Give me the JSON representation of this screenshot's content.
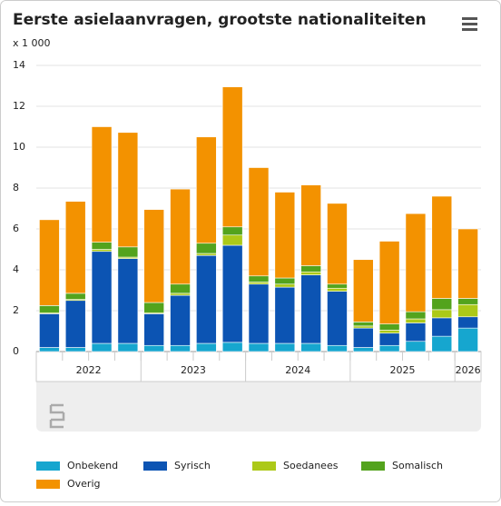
{
  "chart_data": {
    "type": "stacked-bar",
    "title": "Eerste asielaanvragen, grootste nationaliteiten",
    "y_unit_label": "x 1 000",
    "categories": [
      null,
      null,
      null,
      null,
      null,
      null,
      null,
      null,
      null,
      null,
      null,
      null,
      null,
      null,
      null,
      null,
      null
    ],
    "x_groups": [
      {
        "label": "2022",
        "size": 4
      },
      {
        "label": "2023",
        "size": 4
      },
      {
        "label": "2024",
        "size": 4
      },
      {
        "label": "2025",
        "size": 4
      },
      {
        "label": "2026",
        "size": 1
      }
    ],
    "series": [
      {
        "name": "Onbekend",
        "color": "#16a6cf",
        "values": [
          0.2,
          0.2,
          0.4,
          0.4,
          0.3,
          0.3,
          0.4,
          0.45,
          0.4,
          0.4,
          0.4,
          0.3,
          0.2,
          0.3,
          0.5,
          0.75,
          1.15
        ]
      },
      {
        "name": "Syrisch",
        "color": "#0c54b3",
        "values": [
          1.65,
          2.3,
          4.5,
          4.15,
          1.55,
          2.45,
          4.3,
          4.75,
          2.9,
          2.75,
          3.35,
          2.65,
          0.95,
          0.6,
          0.9,
          0.9,
          0.55
        ]
      },
      {
        "name": "Soedanees",
        "color": "#acc918",
        "values": [
          0.05,
          0.05,
          0.1,
          0.07,
          0.05,
          0.1,
          0.1,
          0.5,
          0.1,
          0.15,
          0.15,
          0.15,
          0.1,
          0.15,
          0.2,
          0.4,
          0.6
        ]
      },
      {
        "name": "Somalisch",
        "color": "#53a31d",
        "values": [
          0.35,
          0.3,
          0.35,
          0.5,
          0.5,
          0.45,
          0.5,
          0.4,
          0.3,
          0.3,
          0.3,
          0.2,
          0.2,
          0.3,
          0.35,
          0.55,
          0.3
        ]
      },
      {
        "name": "Overig",
        "color": "#f39200",
        "values": [
          4.2,
          4.5,
          5.65,
          5.6,
          4.55,
          4.65,
          5.2,
          6.85,
          5.3,
          4.2,
          3.95,
          3.95,
          3.05,
          4.05,
          4.8,
          5.0,
          3.4
        ]
      }
    ],
    "ylim": [
      0,
      14
    ],
    "yticks": [
      0,
      2,
      4,
      6,
      8,
      10,
      12,
      14
    ],
    "grid": true,
    "legend": "bottom"
  }
}
